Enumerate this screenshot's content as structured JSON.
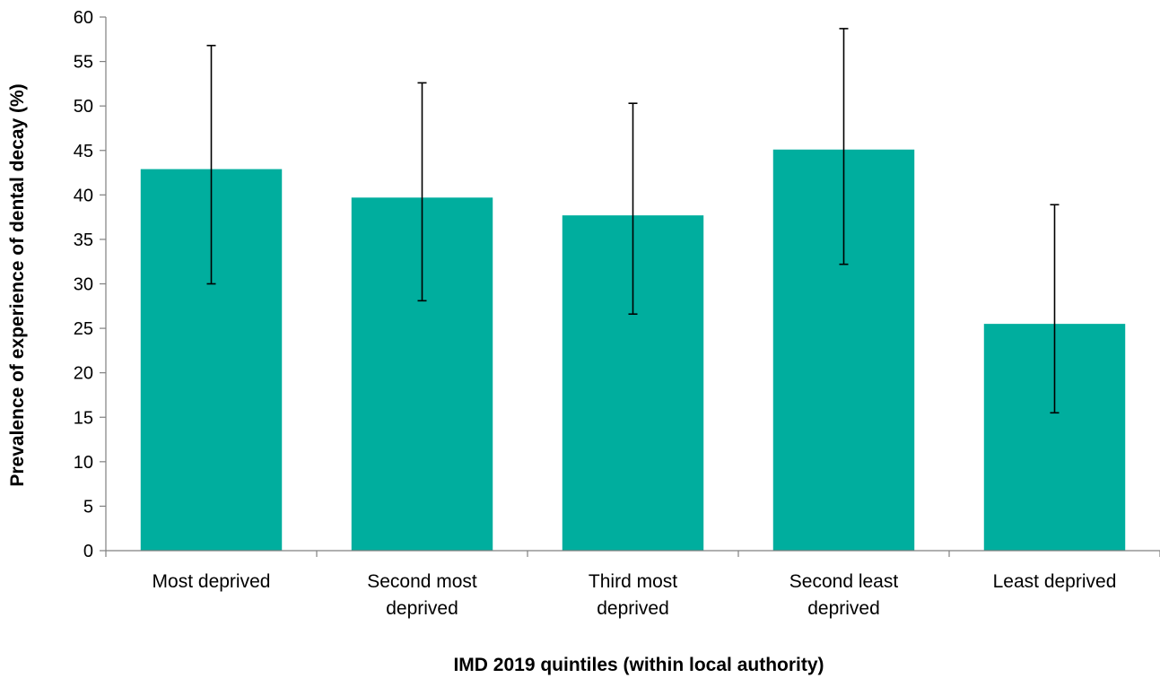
{
  "chart_data": {
    "type": "bar",
    "categories": [
      [
        "Most deprived"
      ],
      [
        "Second most",
        "deprived"
      ],
      [
        "Third most",
        "deprived"
      ],
      [
        "Second least",
        "deprived"
      ],
      [
        "Least deprived"
      ]
    ],
    "series": [
      {
        "values": [
          42.9,
          39.7,
          37.7,
          45.1,
          25.5
        ],
        "error_low": [
          30.0,
          28.1,
          26.6,
          32.2,
          15.5
        ],
        "error_high": [
          56.8,
          52.6,
          50.3,
          58.7,
          38.9
        ],
        "color": "#00ae9e"
      }
    ],
    "xlabel": "IMD 2019 quintiles (within local authority)",
    "ylabel": "Prevalence of experience of dental decay (%)",
    "ylim": [
      0,
      60
    ],
    "yticks": [
      "0",
      "5",
      "10",
      "15",
      "20",
      "25",
      "30",
      "35",
      "40",
      "45",
      "50",
      "55",
      "60"
    ],
    "grid": false,
    "legend": "none"
  }
}
